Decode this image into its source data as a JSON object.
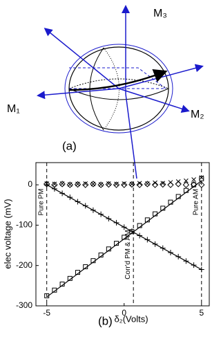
{
  "diagram": {
    "labels": {
      "m3": "M₃",
      "m1": "M₁",
      "m2": "M₂"
    },
    "caption": "(a)"
  },
  "chart_data": {
    "type": "scatter",
    "caption": "(b)",
    "x_label": "δ₂(Volts)",
    "y_label": "elec voltage (mV)",
    "x": [
      -5,
      -4.5,
      -4,
      -3.5,
      -3,
      -2.5,
      -2,
      -1.5,
      -1,
      -0.5,
      0,
      0.5,
      1,
      1.5,
      2,
      2.5,
      3,
      3.5,
      4,
      4.5,
      5
    ],
    "series": [
      {
        "marker": "diamond",
        "color": "#000000",
        "values": [
          2,
          0,
          2,
          0,
          1,
          0,
          2,
          0,
          1,
          0,
          0,
          1,
          0,
          2,
          0,
          1,
          0,
          2,
          0,
          1,
          0
        ]
      },
      {
        "marker": "cross",
        "color": "#000000",
        "values": [
          3,
          2,
          3,
          1,
          2,
          3,
          2,
          1,
          3,
          2,
          3,
          2,
          4,
          3,
          5,
          4,
          6,
          8,
          10,
          13,
          18
        ]
      },
      {
        "marker": "plus",
        "color": "#000000",
        "values": [
          0,
          -10,
          -21,
          -31,
          -42,
          -52,
          -63,
          -73,
          -84,
          -94,
          -105,
          -115,
          -126,
          -136,
          -147,
          -157,
          -168,
          -178,
          -189,
          -199,
          -210
        ]
      },
      {
        "marker": "square",
        "color": "#000000",
        "values": [
          -275,
          -261,
          -246,
          -232,
          -217,
          -203,
          -188,
          -174,
          -159,
          -145,
          -130,
          -116,
          -101,
          -87,
          -72,
          -58,
          -43,
          -29,
          -14,
          0,
          15
        ]
      }
    ],
    "fit_lines": [
      {
        "x": [
          -5,
          5
        ],
        "values": [
          -278,
          10
        ]
      },
      {
        "x": [
          -5,
          5
        ],
        "values": [
          0,
          -210
        ]
      }
    ],
    "vlines": [
      {
        "x": -5,
        "label": "Pure PM"
      },
      {
        "x": 0.6,
        "label": "Corr'd PM & AM"
      },
      {
        "x": 5,
        "label": "Pure AM"
      }
    ],
    "xlim": [
      -5.7,
      5.5
    ],
    "ylim": [
      -300,
      55
    ],
    "xticks": [
      -5,
      0,
      5
    ],
    "yticks": [
      0,
      -100,
      -200,
      -300
    ]
  }
}
